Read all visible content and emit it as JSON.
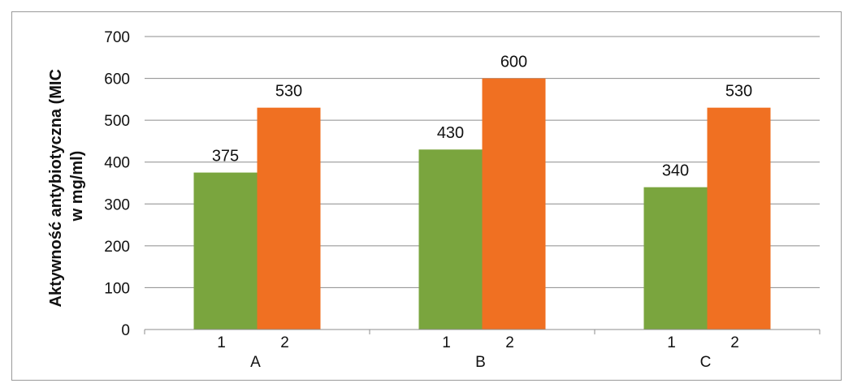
{
  "chart_data": {
    "type": "bar",
    "ylabel_lines": [
      "Aktywność antybiotyczna (MIC",
      "w mg/ml)"
    ],
    "xlabel": "",
    "ylim": [
      0,
      700
    ],
    "yticks": [
      0,
      100,
      200,
      300,
      400,
      500,
      600,
      700
    ],
    "grid": true,
    "legend": "none",
    "groups": [
      "A",
      "B",
      "C"
    ],
    "subcategories": [
      "1",
      "2"
    ],
    "values": [
      [
        375,
        530
      ],
      [
        430,
        600
      ],
      [
        340,
        530
      ]
    ],
    "colors": [
      "#7aa53e",
      "#f07022"
    ]
  }
}
